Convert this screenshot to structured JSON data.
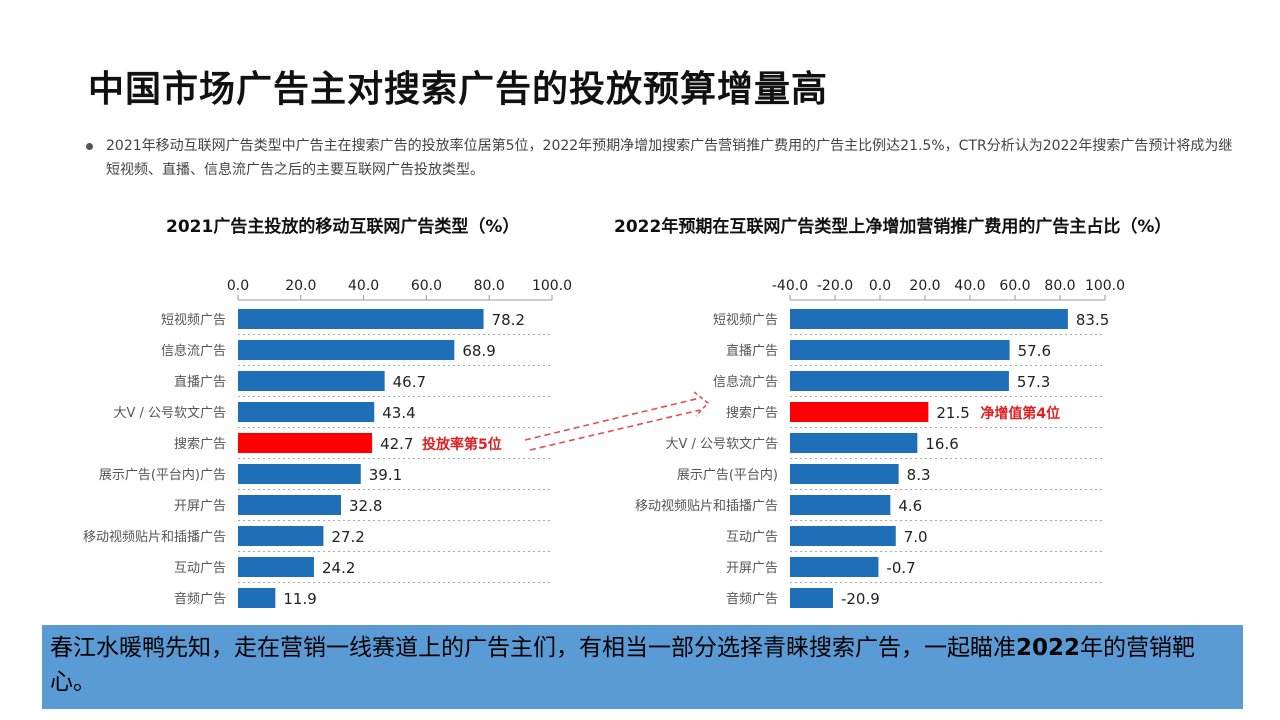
{
  "title": "中国市场广告主对搜索广告的投放预算增量高",
  "bullet": "2021年移动互联网广告类型中广告主在搜索广告的投放率位居第5位，2022年预期净增加搜索广告营销推广费用的广告主比例达21.5%，CTR分析认为2022年搜索广告预计将成为继短视频、直播、信息流广告之后的主要互联网广告投放类型。",
  "colors": {
    "bar": "#1f6fb8",
    "highlight": "#ff0000",
    "caption_bg": "#5b9bd5",
    "annotation": "#e02020"
  },
  "chart_data": [
    {
      "type": "bar",
      "orientation": "horizontal",
      "title": "2021广告主投放的移动互联网广告类型（%）",
      "xlim": [
        0,
        100
      ],
      "ticks": [
        "0.0",
        "20.0",
        "40.0",
        "60.0",
        "80.0",
        "100.0"
      ],
      "tick_values": [
        0,
        20,
        40,
        60,
        80,
        100
      ],
      "categories": [
        "短视频广告",
        "信息流广告",
        "直播广告",
        "大V / 公号软文广告",
        "搜索广告",
        "展示广告(平台内)广告",
        "开屏广告",
        "移动视频贴片和插播广告",
        "互动广告",
        "音频广告"
      ],
      "values": [
        78.2,
        68.9,
        46.7,
        43.4,
        42.7,
        39.1,
        32.8,
        27.2,
        24.2,
        11.9
      ],
      "labels": [
        "78.2",
        "68.9",
        "46.7",
        "43.4",
        "42.7",
        "39.1",
        "32.8",
        "27.2",
        "24.2",
        "11.9"
      ],
      "highlight_index": 4,
      "annotation": "投放率第5位"
    },
    {
      "type": "bar",
      "orientation": "horizontal",
      "title": "2022年预期在互联网广告类型上净增加营销推广费用的广告主占比（%）",
      "xlim": [
        -40,
        100
      ],
      "ticks": [
        "-40.0",
        "-20.0",
        "0.0",
        "20.0",
        "40.0",
        "60.0",
        "80.0",
        "100.0"
      ],
      "tick_values": [
        -40,
        -20,
        0,
        20,
        40,
        60,
        80,
        100
      ],
      "categories": [
        "短视频广告",
        "直播广告",
        "信息流广告",
        "搜索广告",
        "大V / 公号软文广告",
        "展示广告(平台内)",
        "移动视频贴片和插播广告",
        "互动广告",
        "开屏广告",
        "音频广告"
      ],
      "values": [
        83.5,
        57.6,
        57.3,
        21.5,
        16.6,
        8.3,
        4.6,
        7.0,
        -0.7,
        -20.9
      ],
      "labels": [
        "83.5",
        "57.6",
        "57.3",
        "21.5",
        "16.6",
        "8.3",
        "4.6",
        "7.0",
        "-0.7",
        "-20.9"
      ],
      "highlight_index": 3,
      "annotation": "净增值第4位"
    }
  ],
  "caption": {
    "part1": "春江水暖鸭先知，走在营销一线赛道上的广告主们，有相当一部分选择青睐搜索广告，一起瞄准",
    "bold": "2022",
    "part2": "年的营销靶心。"
  }
}
